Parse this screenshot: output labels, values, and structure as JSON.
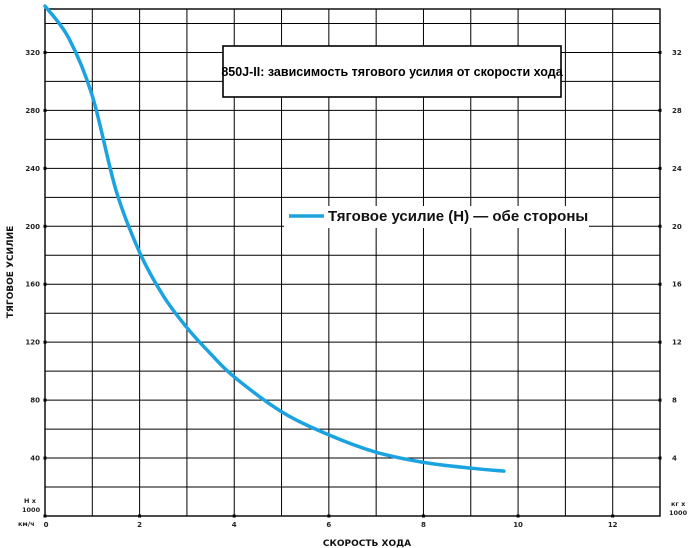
{
  "chart_data": {
    "type": "line",
    "title": "850J-II: зависимость тягового усилия от скорости хода",
    "xlabel": "СКОРОСТЬ ХОДА",
    "ylabel": "ТЯГОВОЕ УСИЛИЕ",
    "x_unit": "км/ч",
    "y_unit_left": [
      "Н x",
      "1000"
    ],
    "y_unit_right": [
      "кг x",
      "1000"
    ],
    "xlim": [
      0,
      13
    ],
    "ylim": [
      0,
      350
    ],
    "x_ticks": [
      0,
      2,
      4,
      6,
      8,
      10,
      12
    ],
    "y_ticks_left": [
      40,
      80,
      120,
      160,
      200,
      240,
      280,
      320
    ],
    "y_ticks_right": [
      4,
      8,
      12,
      16,
      20,
      24,
      28,
      32
    ],
    "grid": true,
    "legend_position": "center-right",
    "series": [
      {
        "name": "Тяговое усилие (Н) — обе стороны",
        "color": "#1aa3e0",
        "x": [
          0,
          0.5,
          1.0,
          1.5,
          2.0,
          2.5,
          3.0,
          3.5,
          4.0,
          5.0,
          6.0,
          7.0,
          8.0,
          9.0,
          9.7
        ],
        "y": [
          352,
          330,
          290,
          225,
          182,
          152,
          130,
          112,
          96,
          72,
          56,
          44,
          37,
          33,
          31
        ]
      }
    ]
  }
}
